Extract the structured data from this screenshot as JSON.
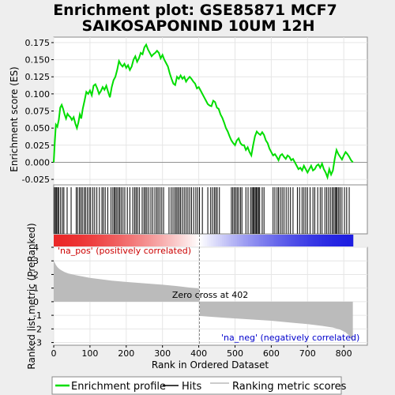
{
  "chart_data": {
    "type": "line",
    "title_line1": "Enrichment plot: GSE85871 MCF7",
    "title_line2": "SAIKOSAPONIND 10UM 12H",
    "ylabel_top": "Enrichment score (ES)",
    "ylabel_bottom": "Ranked list metric (PreRanked)",
    "xlabel": "Rank in Ordered Dataset",
    "xlim": [
      0,
      865
    ],
    "ylim_es": [
      -0.033,
      0.183
    ],
    "ylim_metric": [
      -3.2,
      4
    ],
    "yticks_es": [
      "-0.025",
      "0.000",
      "0.025",
      "0.050",
      "0.075",
      "0.100",
      "0.125",
      "0.150",
      "0.175"
    ],
    "yticks_metric": [
      "-3",
      "-2",
      "-1",
      "0",
      "1",
      "2",
      "3",
      "4"
    ],
    "xticks": [
      "0",
      "100",
      "200",
      "300",
      "400",
      "500",
      "600",
      "700",
      "800"
    ],
    "total_rank": 825,
    "zero_cross": 402,
    "zero_cross_label": "Zero cross at 402",
    "pos_label": "'na_pos' (positively correlated)",
    "neg_label": "'na_neg' (negatively correlated)",
    "es_curve": [
      [
        0,
        0.0
      ],
      [
        3,
        0.03
      ],
      [
        6,
        0.055
      ],
      [
        10,
        0.052
      ],
      [
        14,
        0.062
      ],
      [
        18,
        0.08
      ],
      [
        22,
        0.084
      ],
      [
        26,
        0.078
      ],
      [
        30,
        0.07
      ],
      [
        34,
        0.064
      ],
      [
        38,
        0.071
      ],
      [
        42,
        0.068
      ],
      [
        46,
        0.066
      ],
      [
        50,
        0.062
      ],
      [
        55,
        0.066
      ],
      [
        60,
        0.056
      ],
      [
        64,
        0.05
      ],
      [
        68,
        0.058
      ],
      [
        72,
        0.07
      ],
      [
        76,
        0.064
      ],
      [
        80,
        0.078
      ],
      [
        85,
        0.09
      ],
      [
        90,
        0.103
      ],
      [
        95,
        0.1
      ],
      [
        100,
        0.105
      ],
      [
        105,
        0.098
      ],
      [
        110,
        0.112
      ],
      [
        115,
        0.114
      ],
      [
        120,
        0.108
      ],
      [
        125,
        0.1
      ],
      [
        130,
        0.104
      ],
      [
        135,
        0.11
      ],
      [
        140,
        0.106
      ],
      [
        145,
        0.112
      ],
      [
        150,
        0.103
      ],
      [
        155,
        0.095
      ],
      [
        160,
        0.11
      ],
      [
        165,
        0.12
      ],
      [
        170,
        0.125
      ],
      [
        175,
        0.135
      ],
      [
        180,
        0.148
      ],
      [
        185,
        0.143
      ],
      [
        190,
        0.14
      ],
      [
        195,
        0.144
      ],
      [
        200,
        0.138
      ],
      [
        205,
        0.142
      ],
      [
        210,
        0.135
      ],
      [
        215,
        0.14
      ],
      [
        220,
        0.15
      ],
      [
        225,
        0.155
      ],
      [
        230,
        0.147
      ],
      [
        235,
        0.152
      ],
      [
        240,
        0.16
      ],
      [
        245,
        0.158
      ],
      [
        250,
        0.168
      ],
      [
        255,
        0.172
      ],
      [
        260,
        0.165
      ],
      [
        265,
        0.16
      ],
      [
        270,
        0.155
      ],
      [
        275,
        0.158
      ],
      [
        280,
        0.16
      ],
      [
        285,
        0.163
      ],
      [
        290,
        0.16
      ],
      [
        295,
        0.152
      ],
      [
        300,
        0.157
      ],
      [
        305,
        0.15
      ],
      [
        310,
        0.145
      ],
      [
        315,
        0.14
      ],
      [
        320,
        0.13
      ],
      [
        325,
        0.122
      ],
      [
        330,
        0.115
      ],
      [
        335,
        0.113
      ],
      [
        340,
        0.125
      ],
      [
        345,
        0.122
      ],
      [
        350,
        0.127
      ],
      [
        355,
        0.122
      ],
      [
        360,
        0.125
      ],
      [
        365,
        0.118
      ],
      [
        370,
        0.122
      ],
      [
        375,
        0.125
      ],
      [
        380,
        0.122
      ],
      [
        385,
        0.118
      ],
      [
        390,
        0.115
      ],
      [
        395,
        0.108
      ],
      [
        400,
        0.11
      ],
      [
        405,
        0.105
      ],
      [
        410,
        0.1
      ],
      [
        415,
        0.095
      ],
      [
        420,
        0.09
      ],
      [
        425,
        0.085
      ],
      [
        430,
        0.083
      ],
      [
        435,
        0.082
      ],
      [
        440,
        0.09
      ],
      [
        445,
        0.088
      ],
      [
        450,
        0.08
      ],
      [
        455,
        0.078
      ],
      [
        460,
        0.07
      ],
      [
        465,
        0.065
      ],
      [
        470,
        0.058
      ],
      [
        475,
        0.05
      ],
      [
        480,
        0.045
      ],
      [
        485,
        0.038
      ],
      [
        490,
        0.032
      ],
      [
        495,
        0.028
      ],
      [
        500,
        0.025
      ],
      [
        505,
        0.032
      ],
      [
        510,
        0.035
      ],
      [
        515,
        0.028
      ],
      [
        520,
        0.025
      ],
      [
        525,
        0.025
      ],
      [
        530,
        0.018
      ],
      [
        535,
        0.022
      ],
      [
        540,
        0.015
      ],
      [
        545,
        0.01
      ],
      [
        550,
        0.025
      ],
      [
        555,
        0.038
      ],
      [
        560,
        0.045
      ],
      [
        565,
        0.042
      ],
      [
        570,
        0.04
      ],
      [
        575,
        0.044
      ],
      [
        580,
        0.04
      ],
      [
        585,
        0.032
      ],
      [
        590,
        0.028
      ],
      [
        595,
        0.02
      ],
      [
        600,
        0.015
      ],
      [
        605,
        0.01
      ],
      [
        610,
        0.012
      ],
      [
        615,
        0.008
      ],
      [
        620,
        0.003
      ],
      [
        625,
        0.01
      ],
      [
        630,
        0.012
      ],
      [
        635,
        0.008
      ],
      [
        640,
        0.005
      ],
      [
        645,
        0.01
      ],
      [
        650,
        0.008
      ],
      [
        655,
        0.003
      ],
      [
        660,
        0.005
      ],
      [
        665,
        0.0
      ],
      [
        670,
        -0.005
      ],
      [
        675,
        -0.01
      ],
      [
        680,
        -0.008
      ],
      [
        685,
        -0.012
      ],
      [
        690,
        -0.005
      ],
      [
        695,
        -0.01
      ],
      [
        700,
        -0.015
      ],
      [
        705,
        -0.01
      ],
      [
        710,
        -0.005
      ],
      [
        715,
        -0.012
      ],
      [
        720,
        -0.01
      ],
      [
        725,
        -0.005
      ],
      [
        730,
        -0.003
      ],
      [
        735,
        -0.008
      ],
      [
        740,
        -0.002
      ],
      [
        745,
        -0.01
      ],
      [
        750,
        -0.015
      ],
      [
        755,
        -0.022
      ],
      [
        760,
        -0.01
      ],
      [
        765,
        -0.018
      ],
      [
        770,
        -0.012
      ],
      [
        775,
        0.005
      ],
      [
        780,
        0.018
      ],
      [
        785,
        0.012
      ],
      [
        790,
        0.008
      ],
      [
        795,
        0.004
      ],
      [
        800,
        0.01
      ],
      [
        805,
        0.015
      ],
      [
        810,
        0.012
      ],
      [
        815,
        0.008
      ],
      [
        820,
        0.003
      ],
      [
        825,
        0.0
      ]
    ],
    "hits": [
      2,
      5,
      8,
      11,
      14,
      19,
      24,
      28,
      37,
      48,
      62,
      66,
      71,
      75,
      79,
      84,
      88,
      93,
      98,
      102,
      108,
      113,
      119,
      126,
      133,
      137,
      142,
      149,
      158,
      163,
      167,
      170,
      174,
      178,
      182,
      186,
      191,
      196,
      203,
      210,
      218,
      223,
      227,
      231,
      236,
      244,
      249,
      253,
      257,
      262,
      268,
      273,
      279,
      284,
      288,
      293,
      298,
      303,
      318,
      324,
      329,
      334,
      338,
      342,
      346,
      350,
      355,
      360,
      365,
      370,
      375,
      380,
      386,
      392,
      397,
      402,
      410,
      425,
      433,
      438,
      443,
      447,
      451,
      457,
      490,
      494,
      498,
      502,
      506,
      510,
      515,
      519,
      530,
      536,
      543,
      547,
      550,
      553,
      556,
      559,
      562,
      565,
      568,
      575,
      580,
      605,
      610,
      616,
      620,
      625,
      630,
      635,
      641,
      647,
      653,
      660,
      672,
      678,
      685,
      690,
      695,
      700,
      707,
      715,
      720,
      728,
      735,
      740,
      748,
      753,
      758,
      763,
      768,
      772,
      776,
      779,
      782,
      786,
      790,
      795,
      802,
      808,
      815
    ],
    "metric_curve": [
      [
        0,
        3.0
      ],
      [
        3,
        2.85
      ],
      [
        6,
        2.7
      ],
      [
        10,
        2.55
      ],
      [
        15,
        2.42
      ],
      [
        20,
        2.32
      ],
      [
        30,
        2.18
      ],
      [
        40,
        2.08
      ],
      [
        60,
        1.95
      ],
      [
        80,
        1.85
      ],
      [
        100,
        1.75
      ],
      [
        130,
        1.65
      ],
      [
        160,
        1.55
      ],
      [
        200,
        1.45
      ],
      [
        250,
        1.35
      ],
      [
        300,
        1.25
      ],
      [
        340,
        1.15
      ],
      [
        370,
        1.05
      ],
      [
        395,
        0.98
      ],
      [
        401,
        0.95
      ],
      [
        402,
        0.0
      ],
      [
        403,
        -1.05
      ],
      [
        430,
        -1.1
      ],
      [
        480,
        -1.2
      ],
      [
        540,
        -1.3
      ],
      [
        600,
        -1.4
      ],
      [
        660,
        -1.55
      ],
      [
        700,
        -1.65
      ],
      [
        740,
        -1.78
      ],
      [
        770,
        -1.9
      ],
      [
        790,
        -2.05
      ],
      [
        805,
        -2.25
      ],
      [
        815,
        -2.5
      ],
      [
        822,
        -2.8
      ],
      [
        825,
        -3.0
      ]
    ],
    "colors": {
      "es_line": "#00dd00",
      "hit": "#000000",
      "metric_fill": "#bbbbbb",
      "pos_text": "#cc0000",
      "neg_text": "#0000cc",
      "zero_line": "#888888",
      "pos_band": "#ff0000",
      "neg_band": "#0000ff"
    },
    "legend": [
      {
        "label": "Enrichment profile",
        "icon": "green-line-icon"
      },
      {
        "label": "Hits",
        "icon": "black-line-icon"
      },
      {
        "label": "Ranking metric scores",
        "icon": "gray-line-icon"
      }
    ]
  }
}
